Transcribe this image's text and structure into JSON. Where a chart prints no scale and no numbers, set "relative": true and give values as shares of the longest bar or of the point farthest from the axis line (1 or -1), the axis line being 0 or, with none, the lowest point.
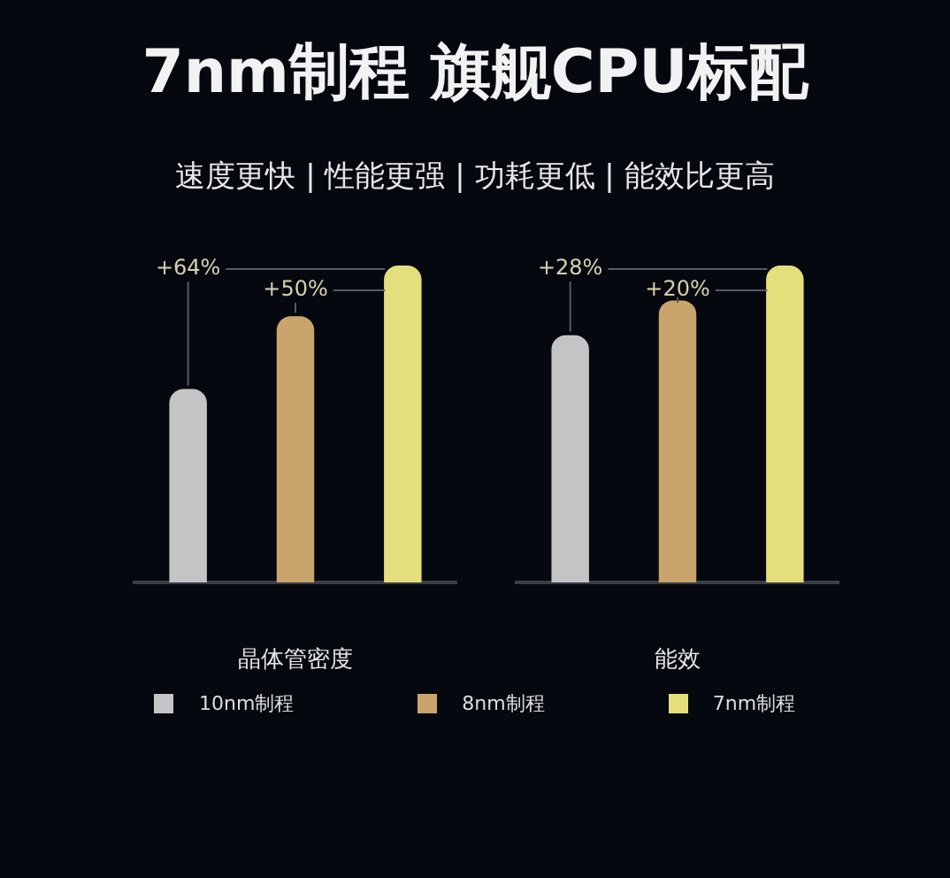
{
  "chart_data": [
    {
      "type": "bar",
      "title": "7nm制程  旗舰CPU标配",
      "subtitle": "速度更快 | 性能更强 | 功耗更低 | 能效比更高",
      "xlabel": "晶体管密度",
      "categories": [
        null,
        null,
        null
      ],
      "stacked": true,
      "relative": true,
      "legend": "bottom",
      "annotations": [
        "+64%",
        "+50%"
      ],
      "series": [
        {
          "name": "10nm制程",
          "color": "#c4c4c6",
          "values": [
            0.61,
            null,
            null
          ]
        },
        {
          "name": "8nm制程",
          "color": "#c9a46c",
          "values": [
            null,
            0.84,
            null
          ]
        },
        {
          "name": "7nm制程",
          "color": "#e4df7c",
          "values": [
            null,
            null,
            1
          ]
        }
      ]
    },
    {
      "type": "bar",
      "xlabel": "能效",
      "categories": [
        null,
        null,
        null
      ],
      "relative": true,
      "annotations": [
        "+28%",
        "+20%"
      ],
      "values": [
        0.78,
        0.89,
        1
      ],
      "colors": [
        "#c4c4c6",
        "#c9a46c",
        "#e4df7c"
      ]
    }
  ]
}
